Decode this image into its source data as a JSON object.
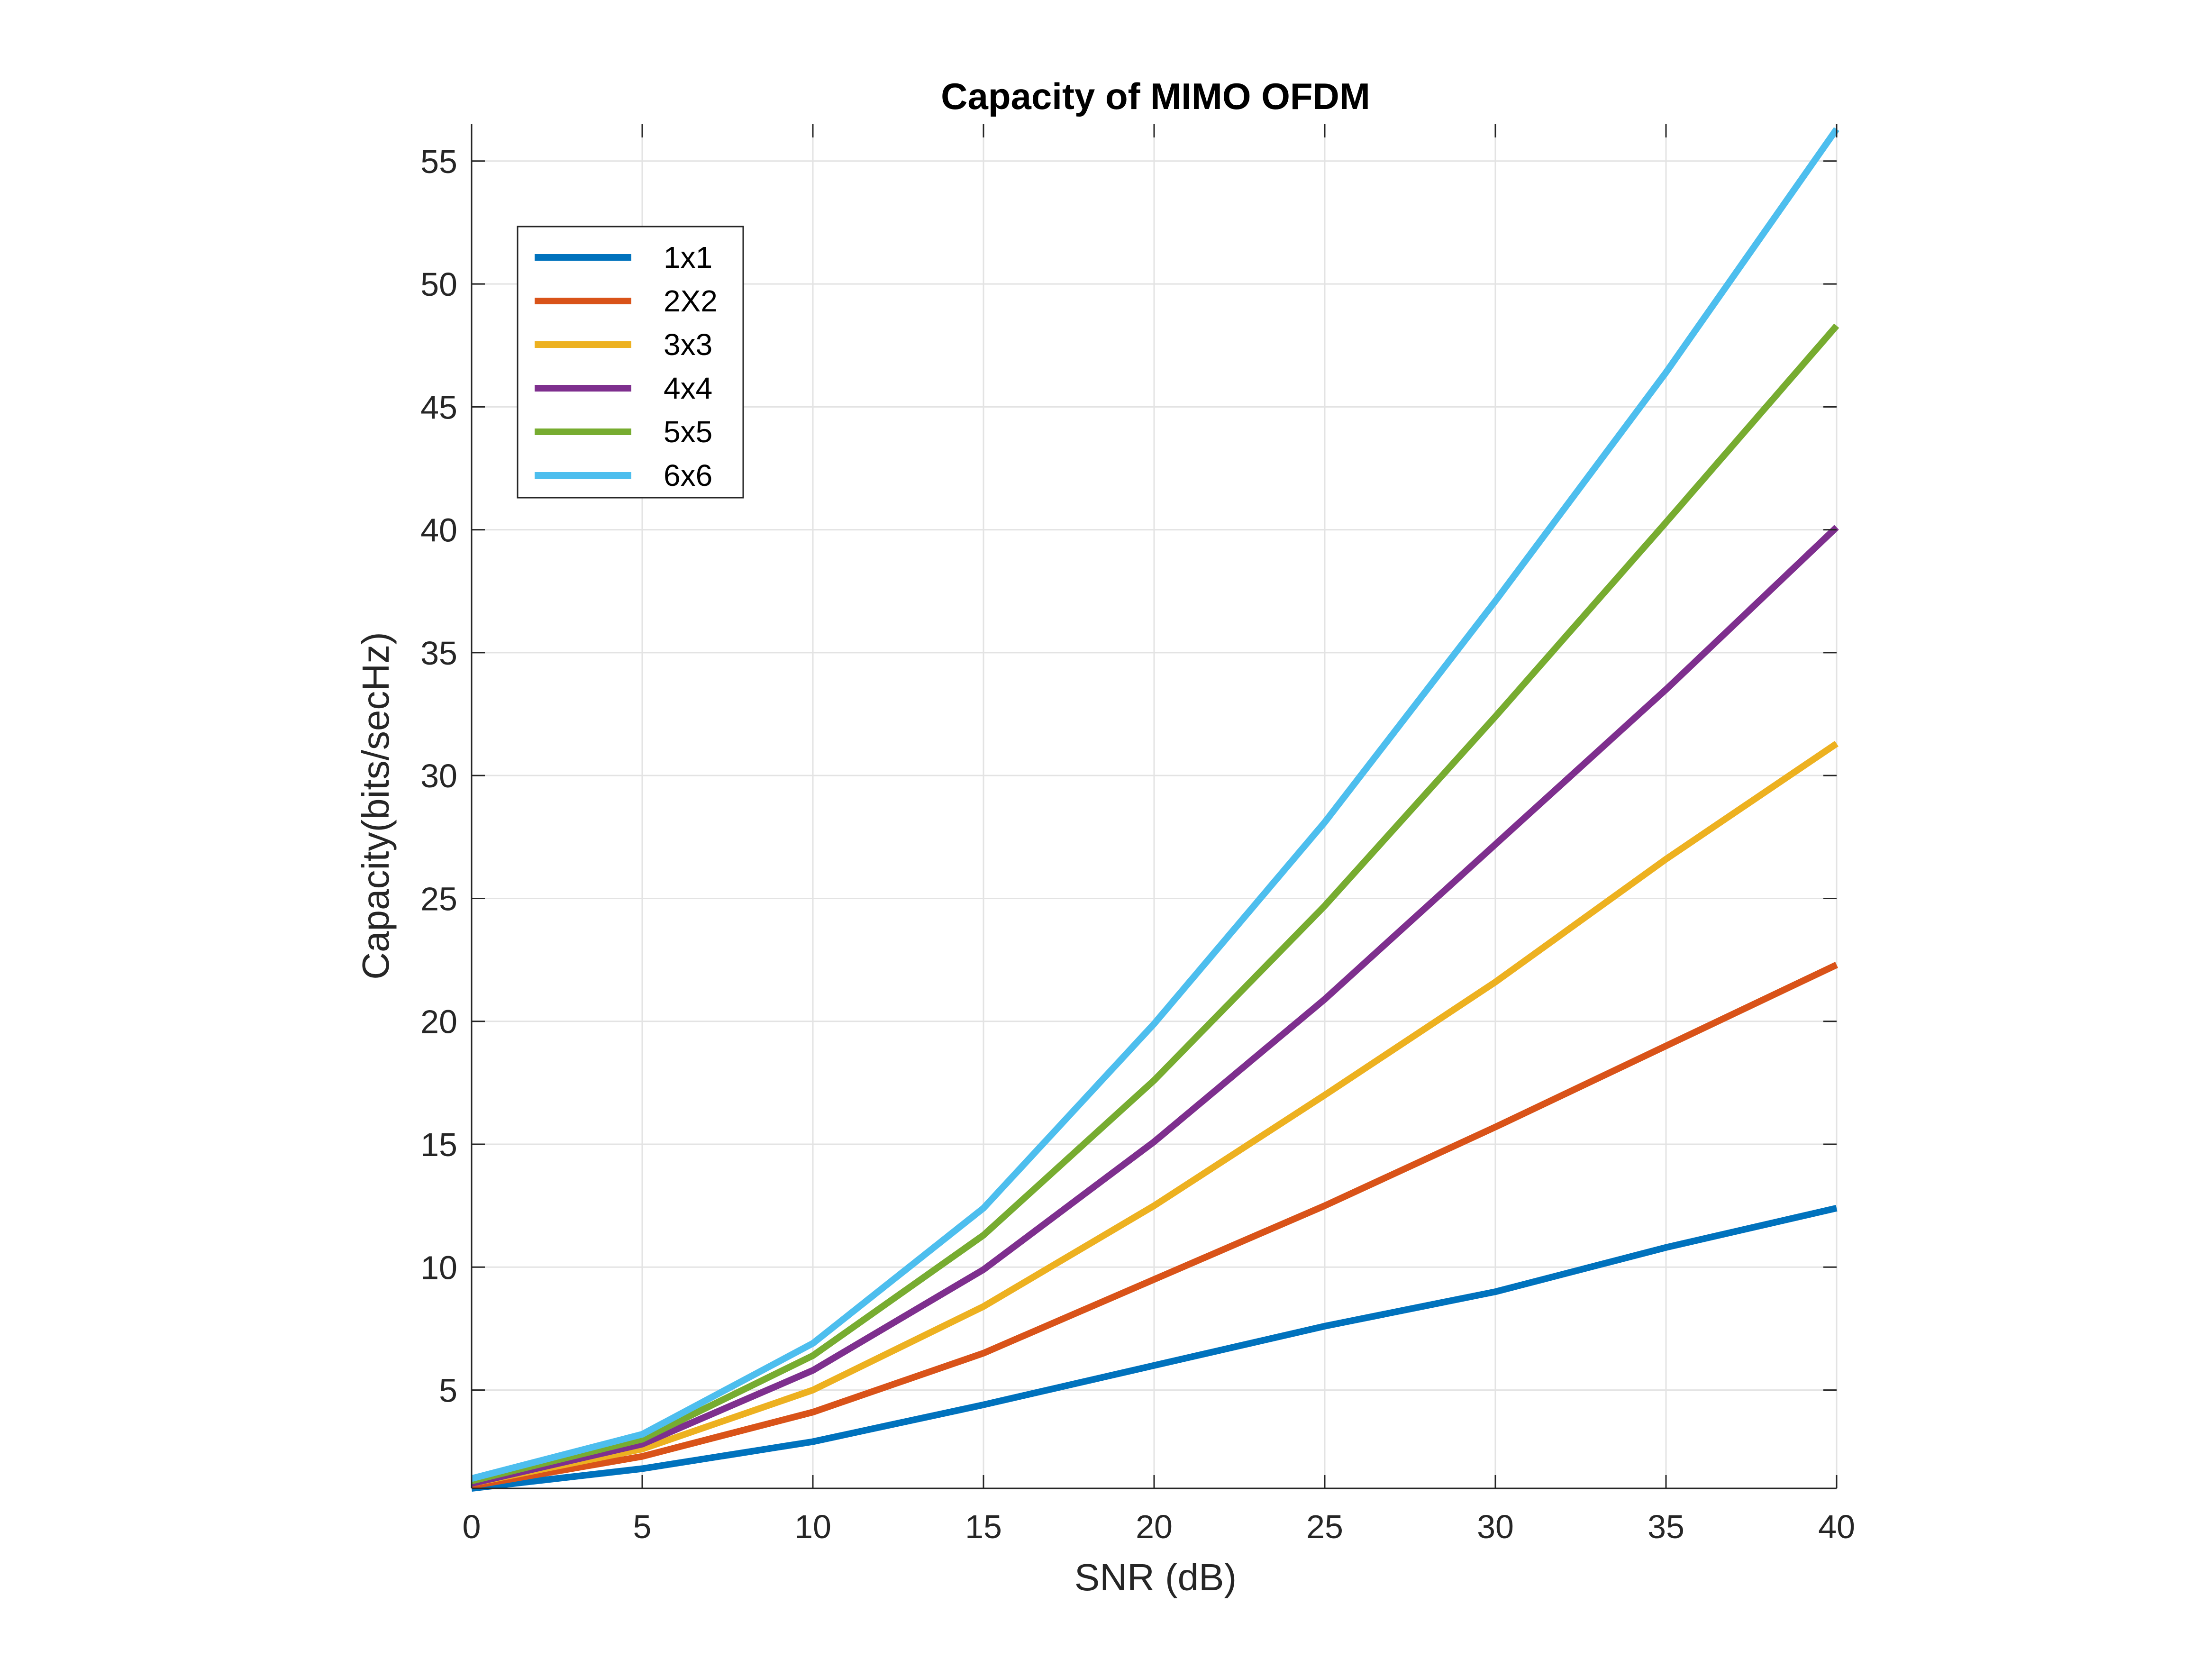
{
  "chart_data": {
    "type": "line",
    "title": "Capacity of MIMO OFDM",
    "xlabel": "SNR (dB)",
    "ylabel": "Capacity(bits/secHz)",
    "xlim": [
      0,
      40
    ],
    "ylim": [
      1,
      56.5
    ],
    "x": [
      0,
      5,
      10,
      15,
      20,
      25,
      30,
      35,
      40
    ],
    "x_ticks": [
      "0",
      "5",
      "10",
      "15",
      "20",
      "25",
      "30",
      "35",
      "40"
    ],
    "y_tick_values": [
      5,
      10,
      15,
      20,
      25,
      30,
      35,
      40,
      45,
      50,
      55
    ],
    "y_ticks": [
      "5",
      "10",
      "15",
      "20",
      "25",
      "30",
      "35",
      "40",
      "45",
      "50",
      "55"
    ],
    "grid": true,
    "legend_position": "top-left",
    "series": [
      {
        "name": "1x1",
        "color": "#0072BD",
        "values": [
          1.0,
          1.8,
          2.9,
          4.4,
          6.0,
          7.6,
          9.0,
          10.8,
          12.4
        ]
      },
      {
        "name": "2X2",
        "color": "#D95319",
        "values": [
          1.1,
          2.3,
          4.1,
          6.5,
          9.5,
          12.5,
          15.7,
          19.0,
          22.3
        ]
      },
      {
        "name": "3x3",
        "color": "#EDB120",
        "values": [
          1.2,
          2.6,
          5.0,
          8.4,
          12.5,
          17.0,
          21.6,
          26.6,
          31.3
        ]
      },
      {
        "name": "4x4",
        "color": "#7E2F8E",
        "values": [
          1.2,
          2.8,
          5.8,
          9.9,
          15.1,
          20.9,
          27.2,
          33.5,
          40.1
        ]
      },
      {
        "name": "5x5",
        "color": "#77AC30",
        "values": [
          1.3,
          3.0,
          6.4,
          11.3,
          17.6,
          24.7,
          32.4,
          40.3,
          48.3
        ]
      },
      {
        "name": "6x6",
        "color": "#4DBEEE",
        "values": [
          1.4,
          3.2,
          6.9,
          12.4,
          19.9,
          28.1,
          37.1,
          46.4,
          56.3
        ]
      }
    ]
  }
}
